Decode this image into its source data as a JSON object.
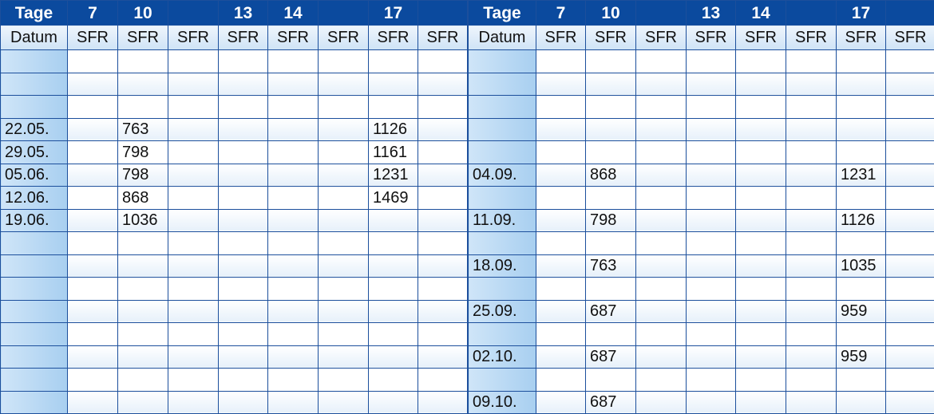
{
  "tables": [
    {
      "header": [
        "Tage",
        7,
        10,
        null,
        13,
        14,
        null,
        17,
        null
      ],
      "subheader": [
        "Datum",
        "SFR",
        "SFR",
        "SFR",
        "SFR",
        "SFR",
        "SFR",
        "SFR",
        "SFR"
      ],
      "rows": [
        [
          null,
          null,
          null,
          null,
          null,
          null,
          null,
          null,
          null
        ],
        [
          null,
          null,
          null,
          null,
          null,
          null,
          null,
          null,
          null
        ],
        [
          null,
          null,
          null,
          null,
          null,
          null,
          null,
          null,
          null
        ],
        [
          "22.05.",
          null,
          763,
          null,
          null,
          null,
          null,
          1126,
          null
        ],
        [
          "29.05.",
          null,
          798,
          null,
          null,
          null,
          null,
          1161,
          null
        ],
        [
          "05.06.",
          null,
          798,
          null,
          null,
          null,
          null,
          1231,
          null
        ],
        [
          "12.06.",
          null,
          868,
          null,
          null,
          null,
          null,
          1469,
          null
        ],
        [
          "19.06.",
          null,
          1036,
          null,
          null,
          null,
          null,
          null,
          null
        ],
        [
          null,
          null,
          null,
          null,
          null,
          null,
          null,
          null,
          null
        ],
        [
          null,
          null,
          null,
          null,
          null,
          null,
          null,
          null,
          null
        ],
        [
          null,
          null,
          null,
          null,
          null,
          null,
          null,
          null,
          null
        ],
        [
          null,
          null,
          null,
          null,
          null,
          null,
          null,
          null,
          null
        ],
        [
          null,
          null,
          null,
          null,
          null,
          null,
          null,
          null,
          null
        ],
        [
          null,
          null,
          null,
          null,
          null,
          null,
          null,
          null,
          null
        ],
        [
          null,
          null,
          null,
          null,
          null,
          null,
          null,
          null,
          null
        ],
        [
          null,
          null,
          null,
          null,
          null,
          null,
          null,
          null,
          null
        ]
      ]
    },
    {
      "header": [
        "Tage",
        7,
        10,
        null,
        13,
        14,
        null,
        17,
        null
      ],
      "subheader": [
        "Datum",
        "SFR",
        "SFR",
        "SFR",
        "SFR",
        "SFR",
        "SFR",
        "SFR",
        "SFR"
      ],
      "rows": [
        [
          null,
          null,
          null,
          null,
          null,
          null,
          null,
          null,
          null
        ],
        [
          null,
          null,
          null,
          null,
          null,
          null,
          null,
          null,
          null
        ],
        [
          null,
          null,
          null,
          null,
          null,
          null,
          null,
          null,
          null
        ],
        [
          null,
          null,
          null,
          null,
          null,
          null,
          null,
          null,
          null
        ],
        [
          null,
          null,
          null,
          null,
          null,
          null,
          null,
          null,
          null
        ],
        [
          "04.09.",
          null,
          868,
          null,
          null,
          null,
          null,
          1231,
          null
        ],
        [
          null,
          null,
          null,
          null,
          null,
          null,
          null,
          null,
          null
        ],
        [
          "11.09.",
          null,
          798,
          null,
          null,
          null,
          null,
          1126,
          null
        ],
        [
          null,
          null,
          null,
          null,
          null,
          null,
          null,
          null,
          null
        ],
        [
          "18.09.",
          null,
          763,
          null,
          null,
          null,
          null,
          1035,
          null
        ],
        [
          null,
          null,
          null,
          null,
          null,
          null,
          null,
          null,
          null
        ],
        [
          "25.09.",
          null,
          687,
          null,
          null,
          null,
          null,
          959,
          null
        ],
        [
          null,
          null,
          null,
          null,
          null,
          null,
          null,
          null,
          null
        ],
        [
          "02.10.",
          null,
          687,
          null,
          null,
          null,
          null,
          959,
          null
        ],
        [
          null,
          null,
          null,
          null,
          null,
          null,
          null,
          null,
          null
        ],
        [
          "09.10.",
          null,
          687,
          null,
          null,
          null,
          null,
          null,
          null
        ]
      ]
    }
  ]
}
